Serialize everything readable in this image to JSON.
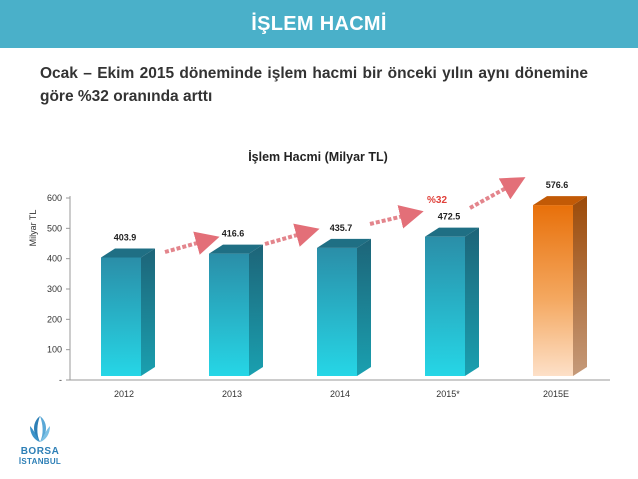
{
  "header": {
    "title": "İŞLEM HACMİ"
  },
  "subtitle": "Ocak – Ekim 2015 döneminde işlem hacmi bir önceki yılın aynı dönemine göre %32 oranında arttı",
  "chart_data": {
    "type": "bar",
    "title": "İşlem Hacmi (Milyar TL)",
    "xlabel": "",
    "ylabel": "Milyar TL",
    "categories": [
      "2012",
      "2013",
      "2014",
      "2015*",
      "2015E"
    ],
    "values": [
      403.9,
      416.6,
      435.7,
      472.5,
      576.6
    ],
    "value_labels": [
      "403.9",
      "416.6",
      "435.7",
      "472.5",
      "576.6"
    ],
    "ylim": [
      0,
      600
    ],
    "yticks": [
      0,
      100,
      200,
      300,
      400,
      500,
      600
    ],
    "ytick_labels": [
      "-",
      "100",
      "200",
      "300",
      "400",
      "500",
      "600"
    ],
    "bar_colors": [
      "#2bb7c9",
      "#2bb7c9",
      "#2bb7c9",
      "#2bb7c9",
      "#e8700a"
    ],
    "annotation": "%32",
    "annotation_color": "#e0403a",
    "grid": false,
    "legend": "none",
    "style": "3d"
  },
  "logo": {
    "line1": "BORSA",
    "line2": "İSTANBUL",
    "color": "#2d7fb6"
  }
}
